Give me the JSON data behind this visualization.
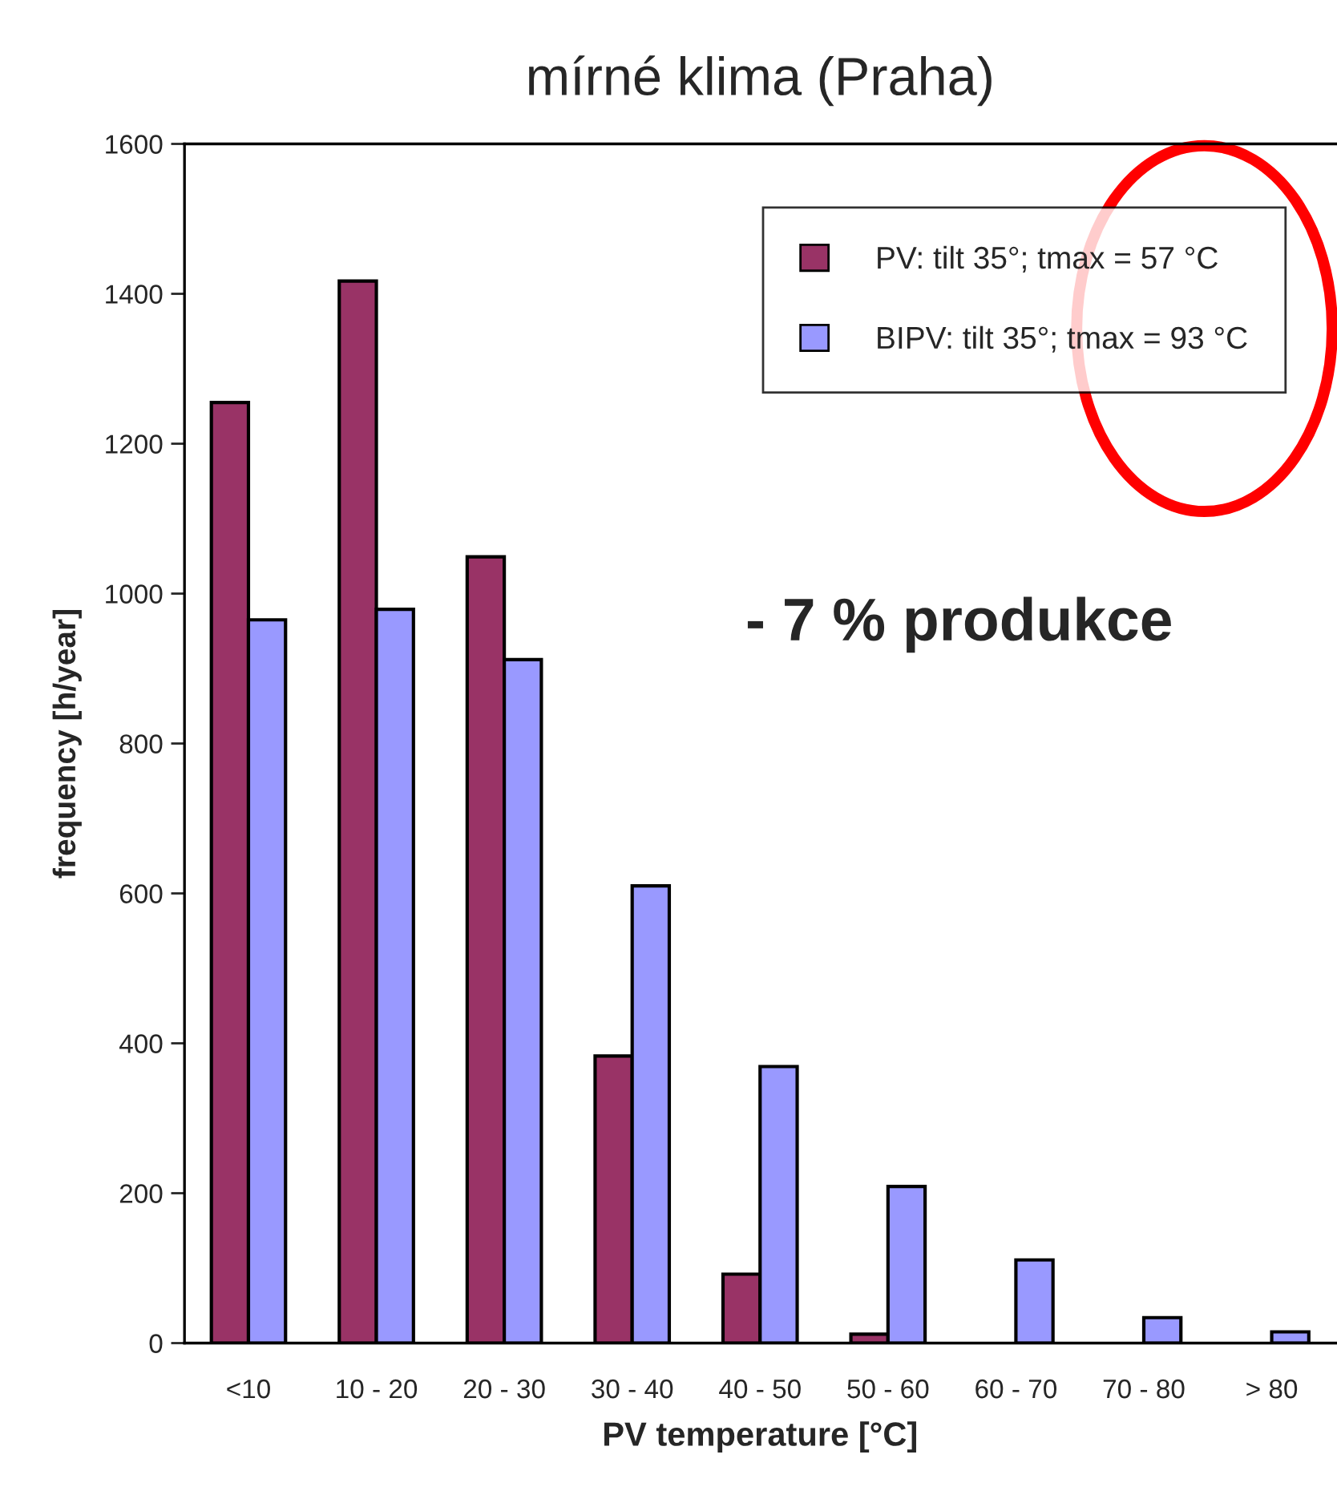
{
  "chart_data": {
    "type": "bar",
    "title": "mírné klima (Praha)",
    "xlabel": "PV temperature [°C]",
    "ylabel": "frequency [h/year]",
    "categories": [
      "<10",
      "10 - 20",
      "20 - 30",
      "30 - 40",
      "40 - 50",
      "50 - 60",
      "60 - 70",
      "70 - 80",
      "> 80"
    ],
    "series": [
      {
        "name": "PV: tilt 35°; tmax = 57 °C",
        "color": "#993366",
        "values": [
          1255,
          1417,
          1049,
          383,
          92,
          12,
          null,
          null,
          null
        ]
      },
      {
        "name": "BIPV: tilt 35°; tmax = 93 °C",
        "color": "#9999ff",
        "values": [
          965,
          979,
          912,
          610,
          369,
          209,
          111,
          34,
          15
        ]
      }
    ],
    "ylim": [
      0,
      1600
    ],
    "yticks": [
      0,
      200,
      400,
      600,
      800,
      1000,
      1200,
      1400,
      1600
    ],
    "annotations": [
      "- 7 % produkce"
    ],
    "legend": "top right",
    "grid": false
  }
}
